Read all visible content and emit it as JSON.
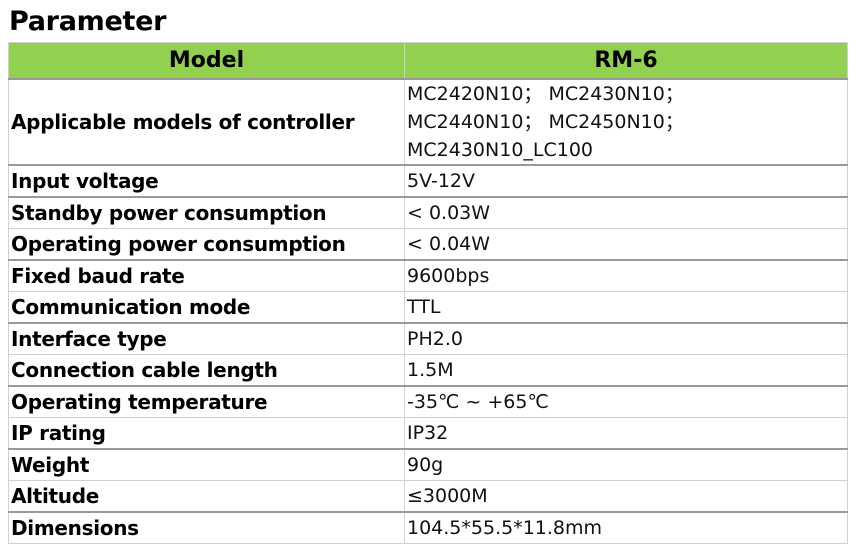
{
  "title": "Parameter",
  "header": {
    "key": "Model",
    "value": "RM-6"
  },
  "rows": [
    {
      "key": "Applicable models of controller",
      "lines": [
        "MC2420N10； MC2430N10；",
        "MC2440N10； MC2450N10；",
        "MC2430N10_LC100"
      ]
    },
    {
      "key": "Input voltage",
      "value": "5V-12V"
    },
    {
      "key": "Standby power consumption",
      "value": "< 0.03W"
    },
    {
      "key": "Operating power consumption",
      "value": "< 0.04W"
    },
    {
      "key": "Fixed baud rate",
      "value": "9600bps"
    },
    {
      "key": "Communication mode",
      "value": "TTL"
    },
    {
      "key": "Interface type",
      "value": "PH2.0"
    },
    {
      "key": "Connection cable length",
      "value": "1.5M"
    },
    {
      "key": "Operating temperature",
      "value": "-35℃  ~ +65℃"
    },
    {
      "key": "IP rating",
      "value": "IP32"
    },
    {
      "key": "Weight",
      "value": "90g"
    },
    {
      "key": "Altitude",
      "value": "≤3000M"
    },
    {
      "key": "Dimensions",
      "value": "104.5*55.5*11.8mm"
    }
  ],
  "colors": {
    "header_bg": "#92d050"
  }
}
